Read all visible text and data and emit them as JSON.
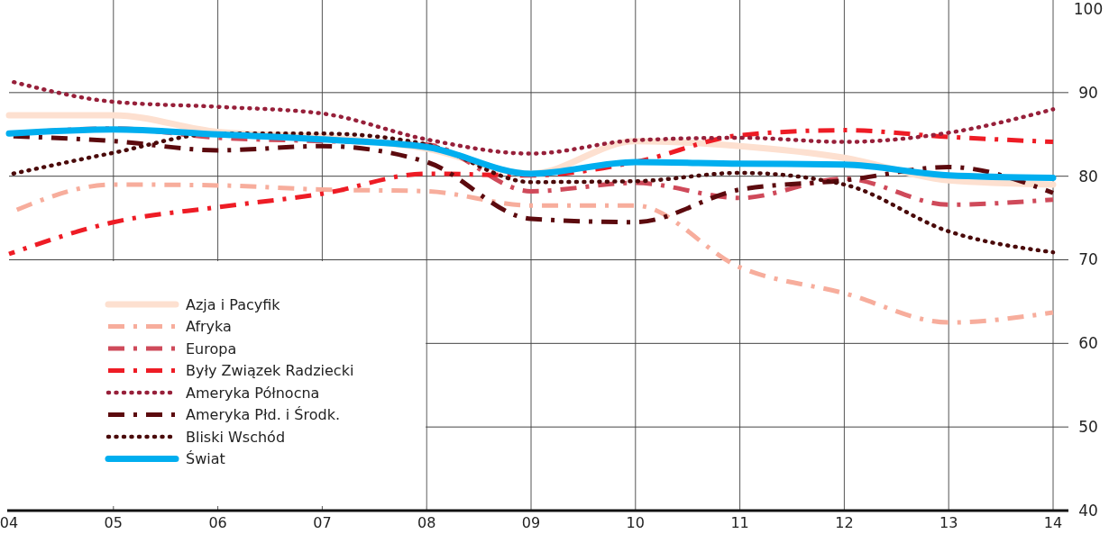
{
  "chart_data": {
    "type": "line",
    "categories": [
      "04",
      "05",
      "06",
      "07",
      "08",
      "09",
      "10",
      "11",
      "12",
      "13",
      "14"
    ],
    "series": [
      {
        "name": "Azja i Pacyfik",
        "color": "#fde0d0",
        "line_style": "solid",
        "values": [
          87.3,
          87.3,
          85.3,
          84.7,
          83.3,
          80.3,
          84.2,
          83.6,
          82.2,
          79.5,
          79.0
        ]
      },
      {
        "name": "Afryka",
        "color": "#f7ad9c",
        "line_style": "dashed",
        "values": [
          75.6,
          79.0,
          78.9,
          78.4,
          78.2,
          76.5,
          76.5,
          69.1,
          66.0,
          62.5,
          63.7
        ]
      },
      {
        "name": "Europa",
        "color": "#cf4a5a",
        "line_style": "dashed",
        "values": [
          85.1,
          85.7,
          84.6,
          84.2,
          83.8,
          78.2,
          79.2,
          77.4,
          79.7,
          76.6,
          77.2
        ]
      },
      {
        "name": "Były Związek Radziecki",
        "color": "#ee1c25",
        "line_style": "dashed",
        "values": [
          70.7,
          74.5,
          76.3,
          77.9,
          80.3,
          80.1,
          81.7,
          84.9,
          85.5,
          84.7,
          84.1
        ]
      },
      {
        "name": "Ameryka Północna",
        "color": "#97203a",
        "line_style": "dotted",
        "values": [
          91.4,
          88.9,
          88.3,
          87.5,
          84.4,
          82.7,
          84.3,
          84.6,
          84.1,
          85.2,
          88.0
        ]
      },
      {
        "name": "Ameryka Płd. i Środk.",
        "color": "#5c0a0e",
        "line_style": "dashed",
        "values": [
          84.8,
          84.2,
          83.1,
          83.6,
          81.7,
          74.9,
          74.5,
          78.4,
          79.5,
          81.1,
          78.0
        ]
      },
      {
        "name": "Bliski Wschód",
        "color": "#4a0a0a",
        "line_style": "dotted",
        "values": [
          80.2,
          82.8,
          85.1,
          85.1,
          83.8,
          79.3,
          79.4,
          80.4,
          79.0,
          73.4,
          70.9
        ]
      },
      {
        "name": "Świat",
        "color": "#00aeef",
        "line_style": "solid",
        "values": [
          85.1,
          85.6,
          85.0,
          84.4,
          83.5,
          80.3,
          81.7,
          81.5,
          81.4,
          80.1,
          79.8
        ]
      }
    ],
    "ylim": [
      40,
      100
    ],
    "yticks": [
      40,
      50,
      60,
      70,
      80,
      90,
      100
    ],
    "grid": true,
    "legend": "left"
  }
}
